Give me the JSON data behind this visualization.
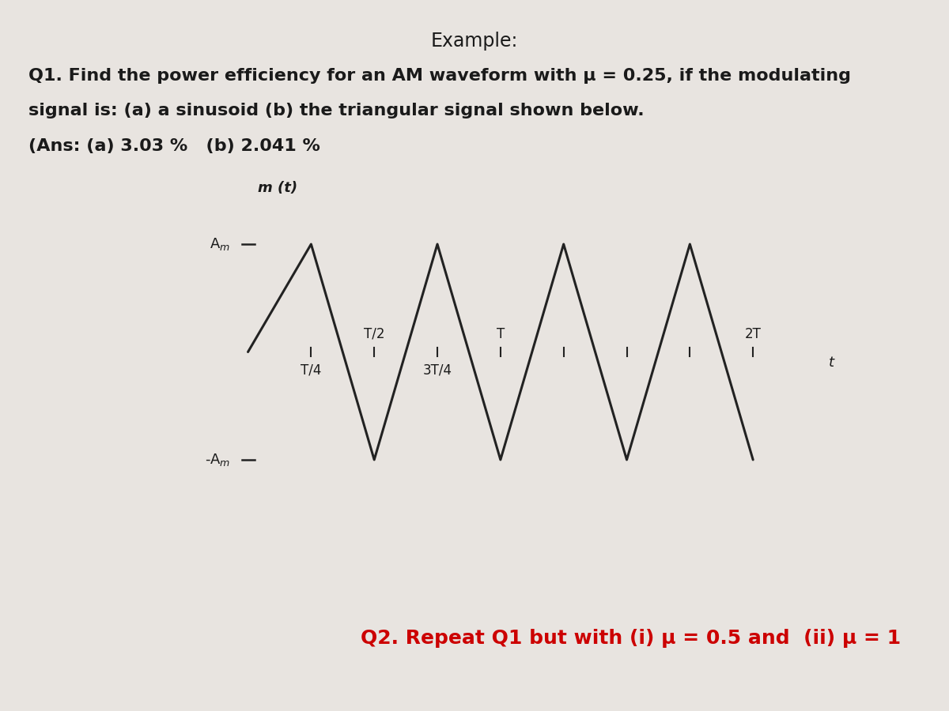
{
  "title": "Example:",
  "q1_line1": "Q1. Find the power efficiency for an AM waveform with μ = 0.25, if the modulating",
  "q1_line2": "signal is: (a) a sinusoid (b) the triangular signal shown below.",
  "q1_line3": "(Ans: (a) 3.03 %   (b) 2.041 %",
  "q2_text": "Q2. Repeat Q1 but with (i) μ = 0.5 and  (ii) μ = 1",
  "ylabel": "m (t)",
  "xlabel": "t",
  "y_label_A": "A",
  "y_label_negA": "-A",
  "bg_color": "#e8e4e0",
  "text_color": "#1a1a1a",
  "line_color": "#222222",
  "q2_color": "#cc0000",
  "wave_x": [
    0,
    0.25,
    0.5,
    0.75,
    1.0,
    1.25,
    1.5,
    1.75,
    2.0
  ],
  "wave_y": [
    0,
    1,
    -1,
    1,
    -1,
    1,
    -1,
    1,
    -1
  ],
  "plot_xlim": [
    -0.08,
    2.25
  ],
  "plot_ylim": [
    -1.55,
    1.55
  ]
}
